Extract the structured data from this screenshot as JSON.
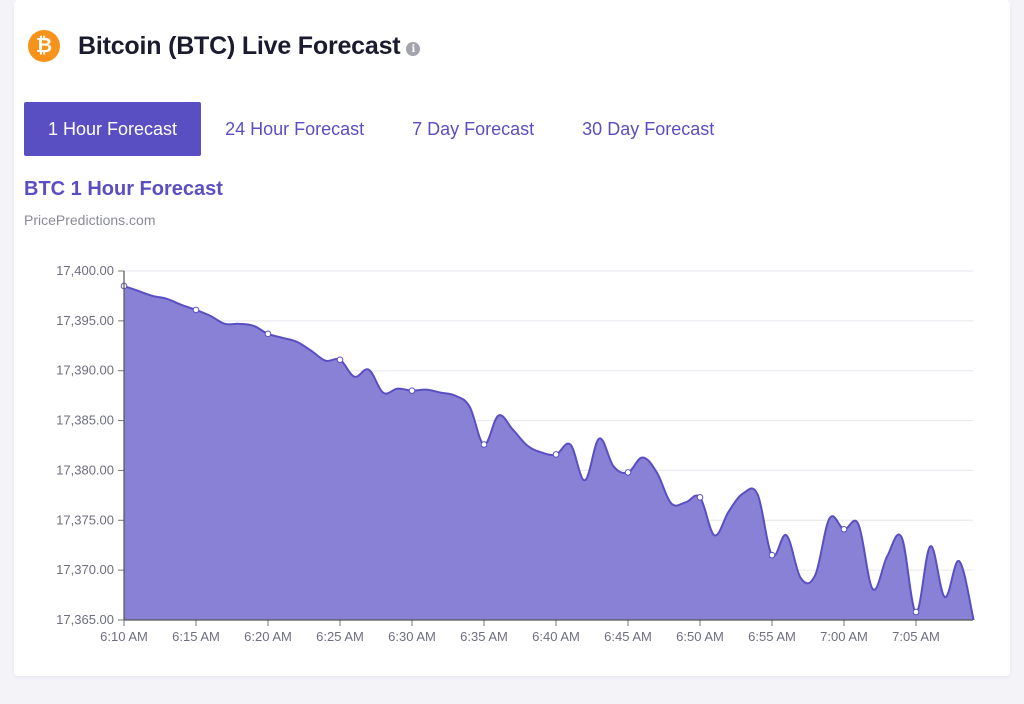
{
  "header": {
    "title": "Bitcoin (BTC) Live Forecast",
    "icon": "bitcoin-icon",
    "info_icon": "info-icon"
  },
  "tabs": [
    {
      "label": "1 Hour Forecast",
      "active": true
    },
    {
      "label": "24 Hour Forecast",
      "active": false
    },
    {
      "label": "7 Day Forecast",
      "active": false
    },
    {
      "label": "30 Day Forecast",
      "active": false
    }
  ],
  "colors": {
    "accent": "#5a4fc2",
    "area_fill": "#8881d5",
    "bitcoin": "#f7931a"
  },
  "chart_data": {
    "type": "area",
    "title": "BTC 1 Hour Forecast",
    "subtitle": "PricePredictions.com",
    "xlabel": "",
    "ylabel": "",
    "ylim": [
      17365,
      17400
    ],
    "yticks": [
      "17,400.00",
      "17,395.00",
      "17,390.00",
      "17,385.00",
      "17,380.00",
      "17,375.00",
      "17,370.00",
      "17,365.00"
    ],
    "xticks": [
      "6:10 AM",
      "6:15 AM",
      "6:20 AM",
      "6:25 AM",
      "6:30 AM",
      "6:35 AM",
      "6:40 AM",
      "6:45 AM",
      "6:50 AM",
      "6:55 AM",
      "7:00 AM",
      "7:05 AM"
    ],
    "grid": true,
    "x_minutes_after_610": [
      0,
      1,
      2,
      3,
      4,
      5,
      6,
      7,
      8,
      9,
      10,
      11,
      12,
      13,
      14,
      15,
      16,
      17,
      18,
      19,
      20,
      21,
      22,
      23,
      24,
      25,
      26,
      27,
      28,
      29,
      30,
      31,
      32,
      33,
      34,
      35,
      36,
      37,
      38,
      39,
      40,
      41,
      42,
      43,
      44,
      45,
      46,
      47,
      48,
      49,
      50,
      51,
      52,
      53,
      54,
      55,
      56,
      57,
      58,
      59
    ],
    "values": [
      17398.5,
      17398.0,
      17397.5,
      17397.2,
      17396.6,
      17396.1,
      17395.5,
      17394.7,
      17394.7,
      17394.5,
      17393.7,
      17393.3,
      17392.9,
      17392.0,
      17391.0,
      17391.1,
      17389.4,
      17390.1,
      17387.8,
      17388.2,
      17388.0,
      17388.1,
      17387.8,
      17387.5,
      17386.4,
      17382.6,
      17385.5,
      17384.1,
      17382.5,
      17381.8,
      17381.6,
      17382.6,
      17379.0,
      17383.2,
      17380.4,
      17379.8,
      17381.3,
      17379.8,
      17376.7,
      17376.8,
      17377.3,
      17373.5,
      17375.9,
      17377.7,
      17377.6,
      17371.5,
      17373.5,
      17369.2,
      17369.5,
      17375.2,
      17374.1,
      17374.6,
      17368.1,
      17371.4,
      17373.3,
      17365.8,
      17372.4,
      17367.3,
      17370.9,
      17365.0
    ],
    "markers_at_minutes": [
      0,
      5,
      10,
      15,
      20,
      25,
      30,
      35,
      40,
      45,
      50,
      55
    ]
  }
}
